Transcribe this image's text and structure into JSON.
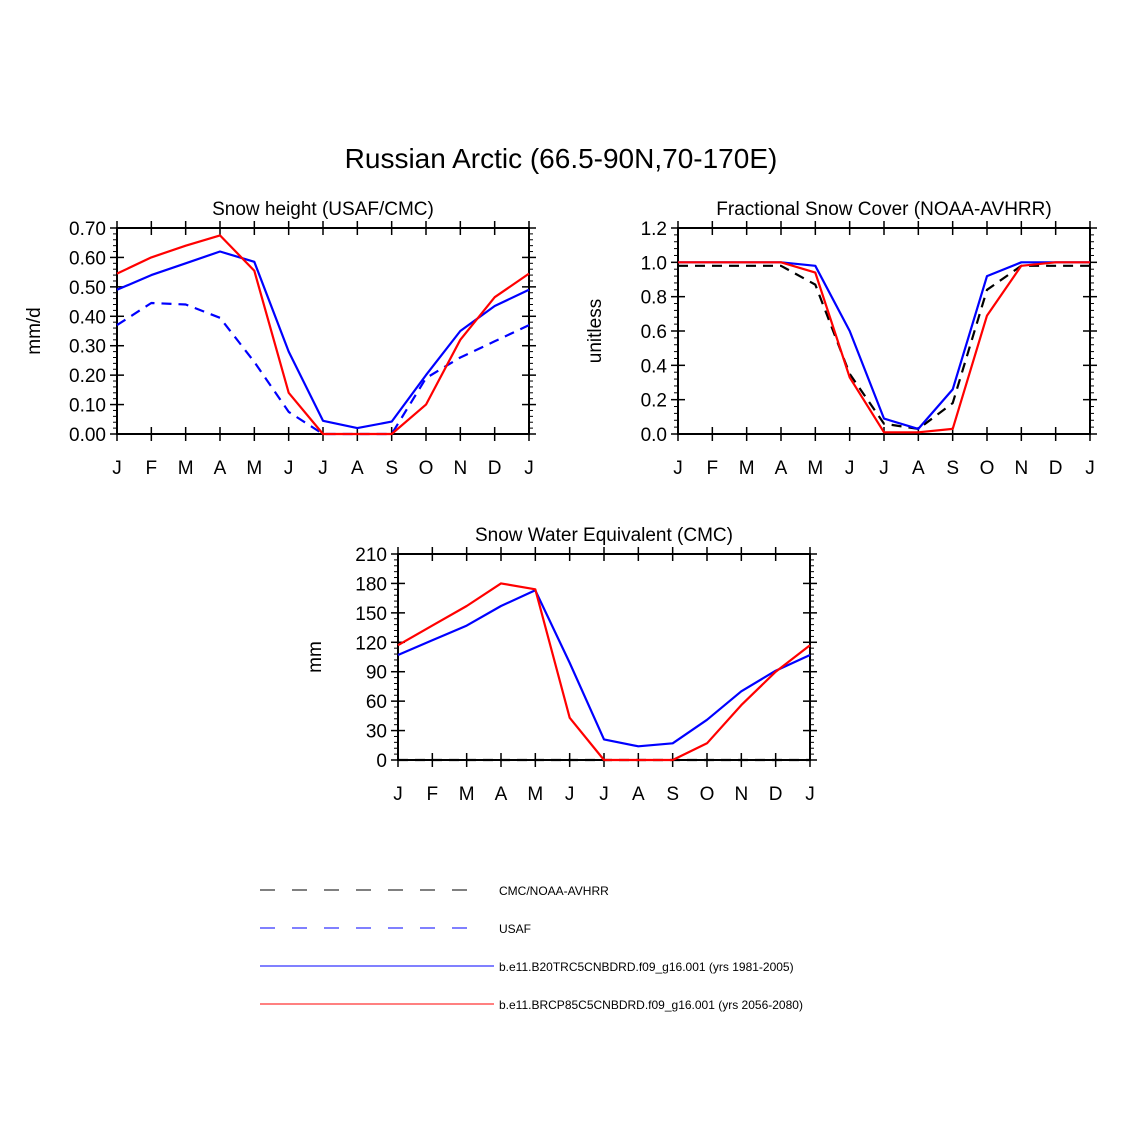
{
  "page": {
    "title": "Russian Arctic (66.5-90N,70-170E)"
  },
  "legend": [
    {
      "label": "CMC/NOAA-AVHRR",
      "color": "#000000",
      "dash": true
    },
    {
      "label": "USAF",
      "color": "#0000ff",
      "dash": true
    },
    {
      "label": "b.e11.B20TRC5CNBDRD.f09_g16.001 (yrs 1981-2005)",
      "color": "#0000ff",
      "dash": false
    },
    {
      "label": "b.e11.BRCP85C5CNBDRD.f09_g16.001 (yrs 2056-2080)",
      "color": "#ff0000",
      "dash": false
    }
  ],
  "chart_data": [
    {
      "type": "line",
      "title": "Snow height (USAF/CMC)",
      "xlabel": "",
      "ylabel": "mm/d",
      "categories": [
        "J",
        "F",
        "M",
        "A",
        "M",
        "J",
        "J",
        "A",
        "S",
        "O",
        "N",
        "D",
        "J"
      ],
      "ylim": [
        0,
        0.7
      ],
      "yticks": [
        "0.00",
        "0.10",
        "0.20",
        "0.30",
        "0.40",
        "0.50",
        "0.60",
        "0.70"
      ],
      "series": [
        {
          "name": "USAF",
          "color": "#0000ff",
          "dash": true,
          "values": [
            0.37,
            0.445,
            0.44,
            0.395,
            0.245,
            0.075,
            0.0,
            0.0,
            0.0,
            0.19,
            0.26,
            0.315,
            0.37
          ]
        },
        {
          "name": "b.e11.B20TRC5CNBDRD.f09_g16.001 (yrs 1981-2005)",
          "color": "#0000ff",
          "dash": false,
          "values": [
            0.49,
            0.54,
            0.58,
            0.62,
            0.585,
            0.28,
            0.045,
            0.02,
            0.042,
            0.2,
            0.35,
            0.435,
            0.49
          ]
        },
        {
          "name": "b.e11.BRCP85C5CNBDRD.f09_g16.001 (yrs 2056-2080)",
          "color": "#ff0000",
          "dash": false,
          "values": [
            0.545,
            0.6,
            0.64,
            0.675,
            0.555,
            0.14,
            0.0,
            0.0,
            0.0,
            0.1,
            0.32,
            0.465,
            0.545
          ]
        }
      ]
    },
    {
      "type": "line",
      "title": "Fractional Snow Cover (NOAA-AVHRR)",
      "xlabel": "",
      "ylabel": "unitless",
      "categories": [
        "J",
        "F",
        "M",
        "A",
        "M",
        "J",
        "J",
        "A",
        "S",
        "O",
        "N",
        "D",
        "J"
      ],
      "ylim": [
        0,
        1.2
      ],
      "yticks": [
        "0.0",
        "0.2",
        "0.4",
        "0.6",
        "0.8",
        "1.0",
        "1.2"
      ],
      "series": [
        {
          "name": "CMC/NOAA-AVHRR",
          "color": "#000000",
          "dash": true,
          "values": [
            0.98,
            0.98,
            0.98,
            0.98,
            0.87,
            0.35,
            0.06,
            0.03,
            0.18,
            0.84,
            0.98,
            0.98,
            0.98
          ]
        },
        {
          "name": "b.e11.B20TRC5CNBDRD.f09_g16.001 (yrs 1981-2005)",
          "color": "#0000ff",
          "dash": false,
          "values": [
            1.0,
            1.0,
            1.0,
            1.0,
            0.98,
            0.6,
            0.09,
            0.03,
            0.26,
            0.92,
            1.0,
            1.0,
            1.0
          ]
        },
        {
          "name": "b.e11.BRCP85C5CNBDRD.f09_g16.001 (yrs 2056-2080)",
          "color": "#ff0000",
          "dash": false,
          "values": [
            1.0,
            1.0,
            1.0,
            1.0,
            0.94,
            0.33,
            0.01,
            0.01,
            0.03,
            0.69,
            0.98,
            1.0,
            1.0
          ]
        }
      ]
    },
    {
      "type": "line",
      "title": "Snow Water Equivalent (CMC)",
      "xlabel": "",
      "ylabel": "mm",
      "categories": [
        "J",
        "F",
        "M",
        "A",
        "M",
        "J",
        "J",
        "A",
        "S",
        "O",
        "N",
        "D",
        "J"
      ],
      "ylim": [
        0,
        210
      ],
      "yticks": [
        "0",
        "30",
        "60",
        "90",
        "120",
        "150",
        "180",
        "210"
      ],
      "series": [
        {
          "name": "CMC/NOAA-AVHRR",
          "color": "#000000",
          "dash": true,
          "values": [
            0,
            0,
            0,
            0,
            0,
            0,
            0,
            0,
            0,
            0,
            0,
            0,
            0
          ]
        },
        {
          "name": "b.e11.B20TRC5CNBDRD.f09_g16.001 (yrs 1981-2005)",
          "color": "#0000ff",
          "dash": false,
          "values": [
            107,
            122,
            137,
            157,
            173,
            99,
            21,
            14,
            17,
            41,
            70,
            91,
            107
          ]
        },
        {
          "name": "b.e11.BRCP85C5CNBDRD.f09_g16.001 (yrs 2056-2080)",
          "color": "#ff0000",
          "dash": false,
          "values": [
            117,
            137,
            157,
            180,
            174,
            43,
            0,
            0,
            0,
            17,
            56,
            90,
            117
          ]
        }
      ]
    }
  ]
}
